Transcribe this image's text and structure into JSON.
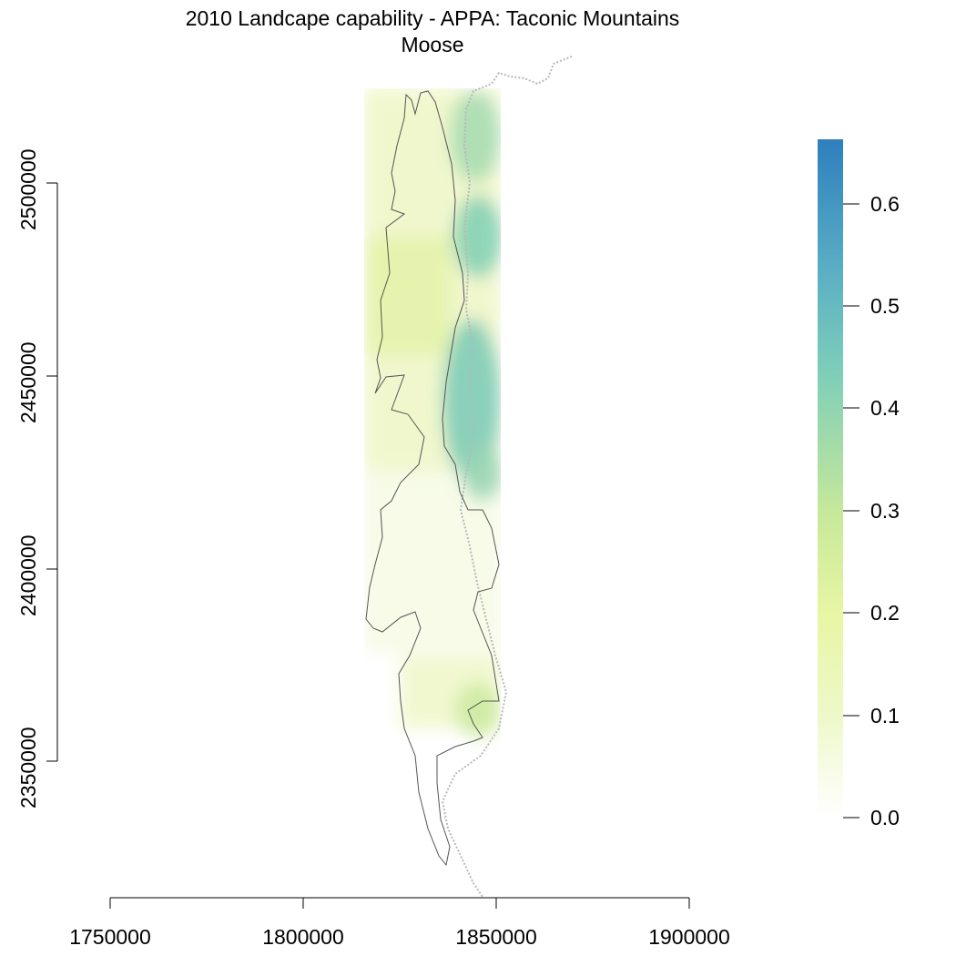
{
  "title": "2010 Landcape capability - APPA: Taconic Mountains",
  "subtitle": "Moose",
  "x_axis": {
    "ticks": [
      "1750000",
      "1800000",
      "1850000",
      "1900000"
    ]
  },
  "y_axis": {
    "ticks": [
      "2350000",
      "2400000",
      "2450000",
      "2500000"
    ]
  },
  "legend": {
    "ticks": [
      "0.0",
      "0.1",
      "0.2",
      "0.3",
      "0.4",
      "0.5",
      "0.6"
    ],
    "range": [
      0.0,
      0.66
    ],
    "colors": [
      "#ffffff",
      "#eef8c8",
      "#e8f6a4",
      "#c6e89a",
      "#7fcfb8",
      "#5bb0c4",
      "#2f7fbe"
    ]
  },
  "colors": {
    "boundary": "#555555",
    "state_line": "#b8b8b8",
    "axis": "#000000"
  }
}
